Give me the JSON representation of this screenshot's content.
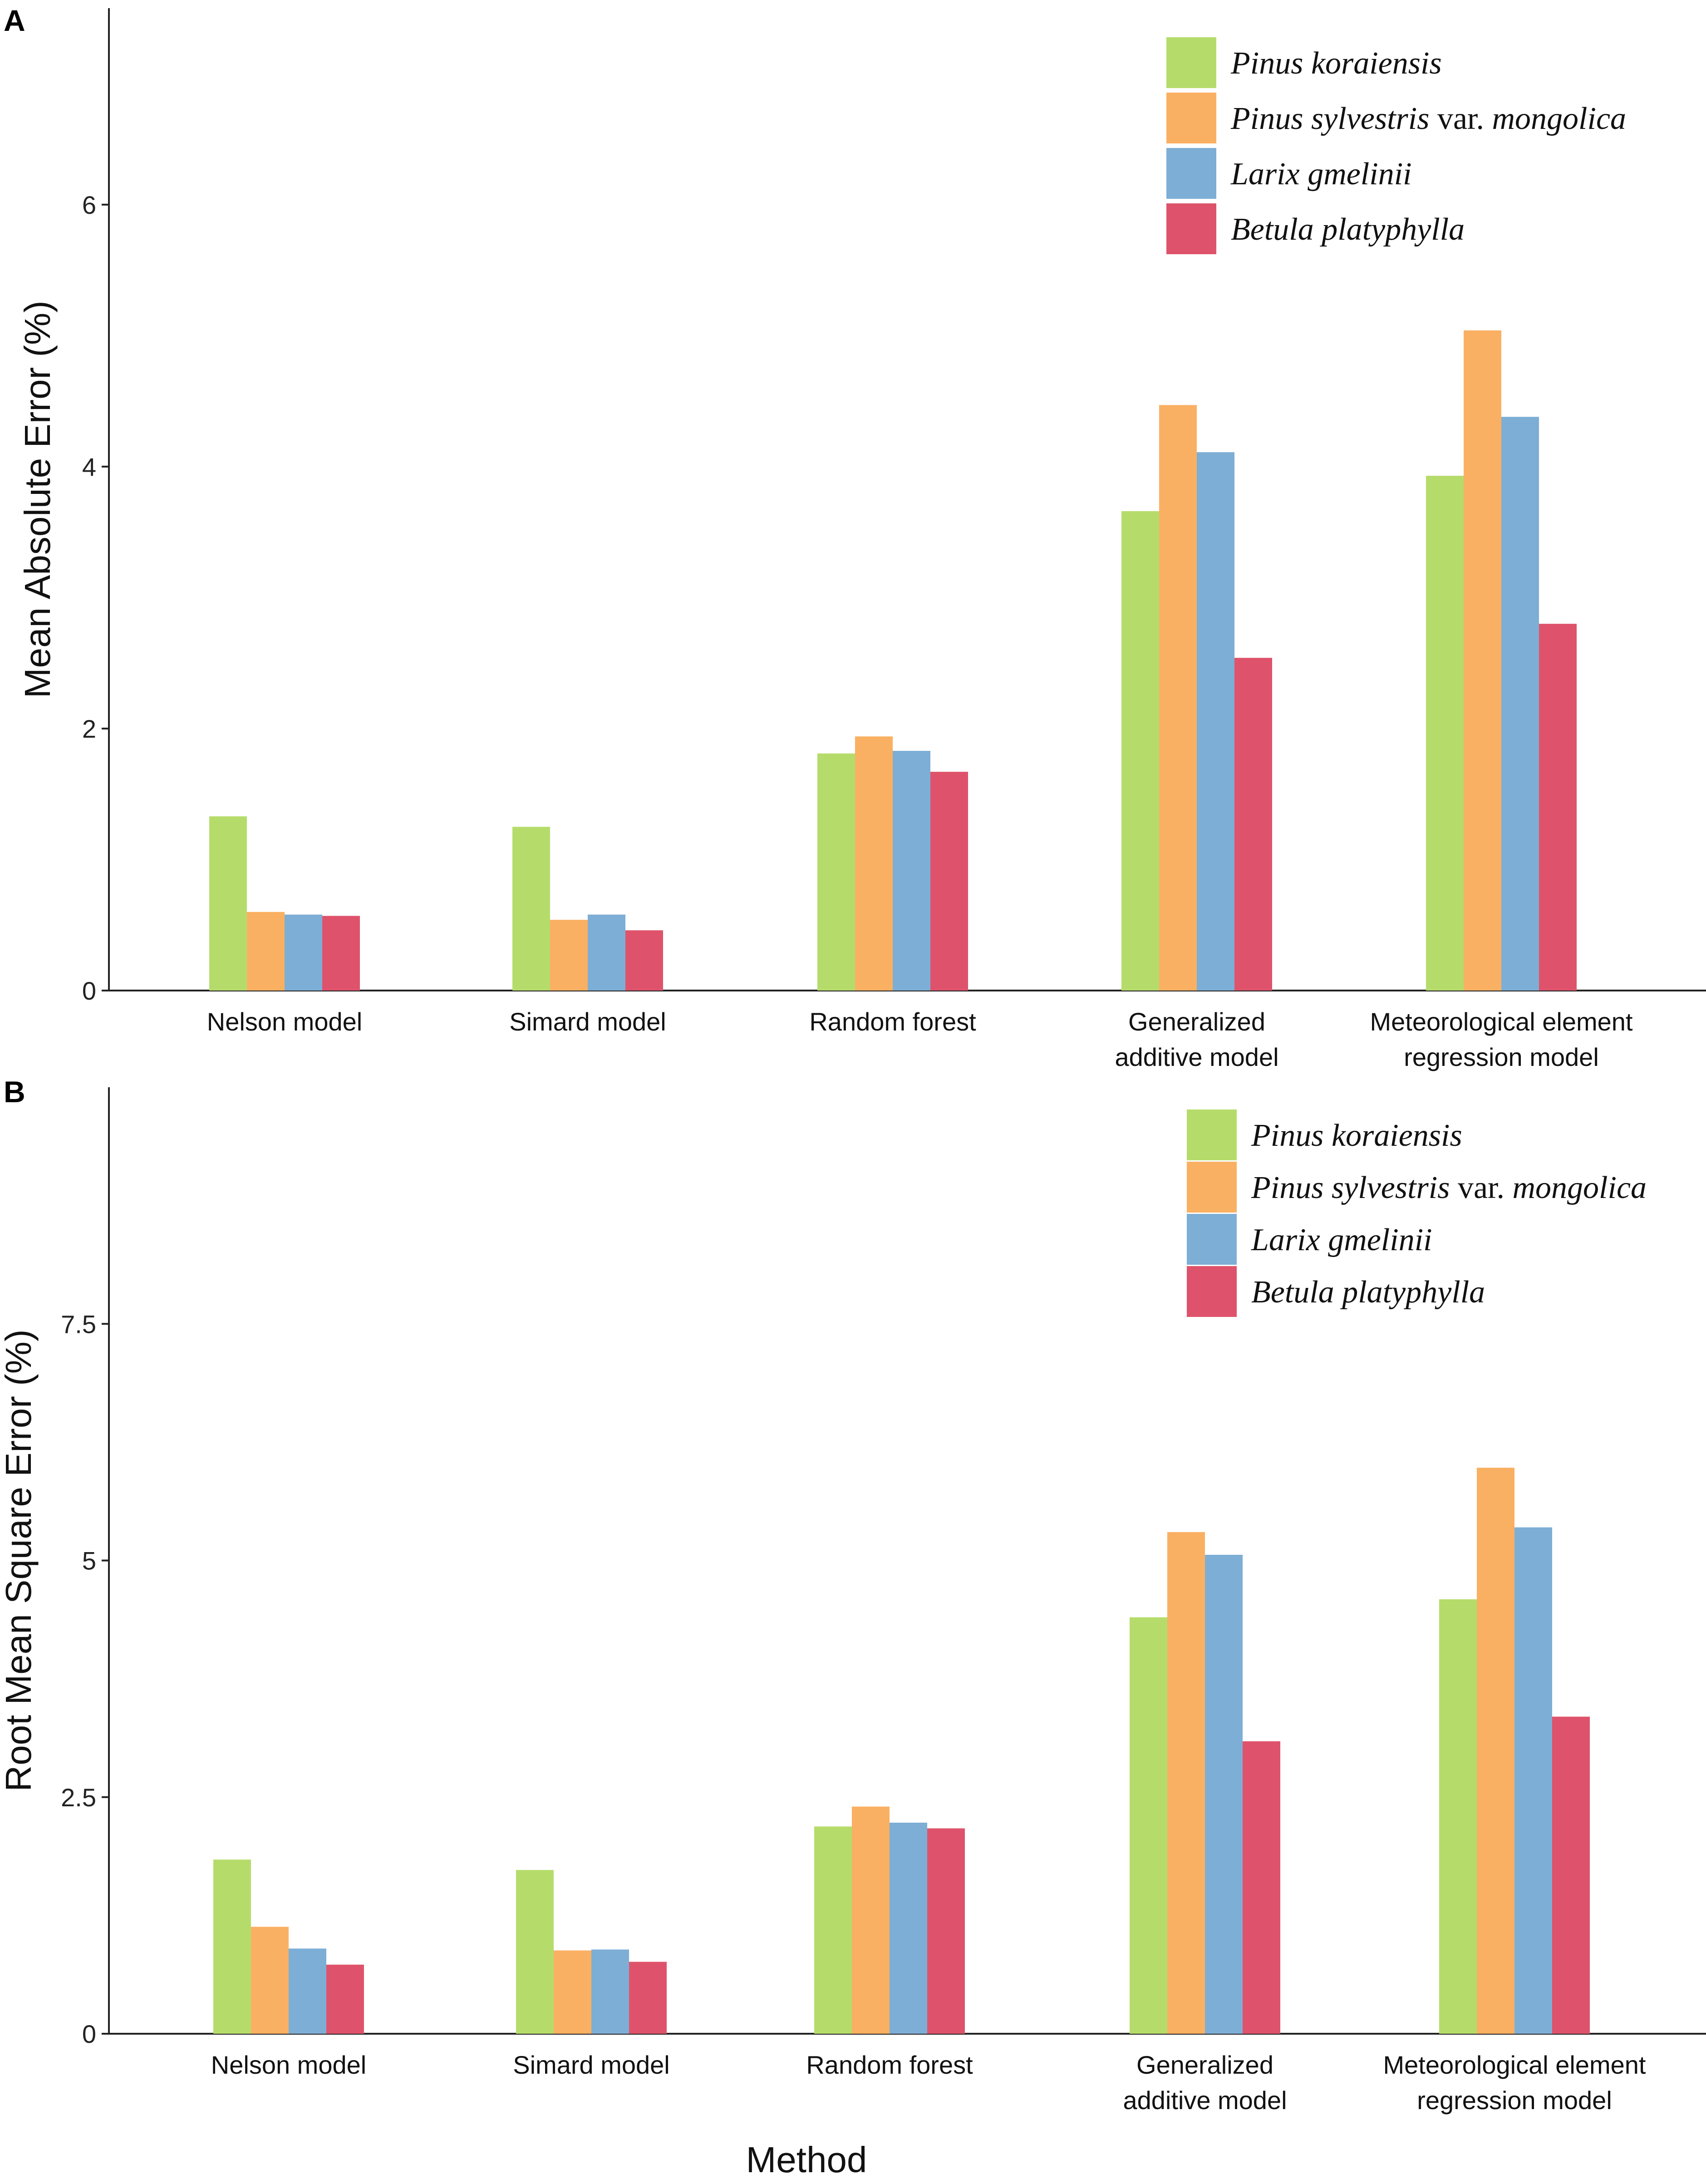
{
  "x_axis_title": "Method",
  "legend": [
    {
      "parts": [
        {
          "text": "Pinus koraiensis",
          "italic": true
        }
      ],
      "color": "#b5dc6b"
    },
    {
      "parts": [
        {
          "text": "Pinus sylvestris",
          "italic": true
        },
        {
          "text": " var. ",
          "italic": false
        },
        {
          "text": "mongolica",
          "italic": true
        }
      ],
      "color": "#fab062"
    },
    {
      "parts": [
        {
          "text": "Larix gmelinii",
          "italic": true
        }
      ],
      "color": "#7daed5"
    },
    {
      "parts": [
        {
          "text": "Betula platyphylla",
          "italic": true
        }
      ],
      "color": "#de536b"
    }
  ],
  "chart_data": [
    {
      "panel": "A",
      "type": "bar",
      "title": "",
      "xlabel": "",
      "ylabel": "Mean Absolute Error (%)",
      "ylim": [
        0,
        7.5
      ],
      "yticks": [
        0,
        2,
        4,
        6
      ],
      "ytick_labels": [
        "0",
        "2",
        "4",
        "6"
      ],
      "categories": [
        [
          "Nelson  model"
        ],
        [
          "Simard  model"
        ],
        [
          "Random  forest"
        ],
        [
          "Generalized",
          "additive model"
        ],
        [
          "Meteorological element",
          "regression model"
        ]
      ],
      "series": [
        {
          "name": "Pinus koraiensis",
          "values": [
            1.33,
            1.25,
            1.81,
            3.66,
            3.93
          ]
        },
        {
          "name": "Pinus sylvestris var. mongolica",
          "values": [
            0.6,
            0.54,
            1.94,
            4.47,
            5.04
          ]
        },
        {
          "name": "Larix gmelinii",
          "values": [
            0.58,
            0.58,
            1.83,
            4.11,
            4.38
          ]
        },
        {
          "name": "Betula platyphylla",
          "values": [
            0.57,
            0.46,
            1.67,
            2.54,
            2.8
          ]
        }
      ],
      "legend_position": "top-right",
      "grid": false
    },
    {
      "panel": "B",
      "type": "bar",
      "title": "",
      "xlabel": "Method",
      "ylabel": "Root Mean Square Error (%)",
      "ylim": [
        0,
        10
      ],
      "yticks": [
        0,
        2.5,
        5,
        7.5
      ],
      "ytick_labels": [
        "0",
        "2.5",
        "5",
        "7.5"
      ],
      "categories": [
        [
          "Nelson model"
        ],
        [
          "Simard model"
        ],
        [
          "Random  forest"
        ],
        [
          "Generalized",
          "additive model"
        ],
        [
          "Meteorological element",
          "regression model"
        ]
      ],
      "series": [
        {
          "name": "Pinus koraiensis",
          "values": [
            1.84,
            1.73,
            2.19,
            4.4,
            4.59
          ]
        },
        {
          "name": "Pinus sylvestris var. mongolica",
          "values": [
            1.13,
            0.88,
            2.4,
            5.3,
            5.98
          ]
        },
        {
          "name": "Larix gmelinii",
          "values": [
            0.9,
            0.89,
            2.23,
            5.06,
            5.35
          ]
        },
        {
          "name": "Betula platyphylla",
          "values": [
            0.73,
            0.76,
            2.17,
            3.09,
            3.35
          ]
        }
      ],
      "legend_position": "top-right",
      "grid": false
    }
  ]
}
